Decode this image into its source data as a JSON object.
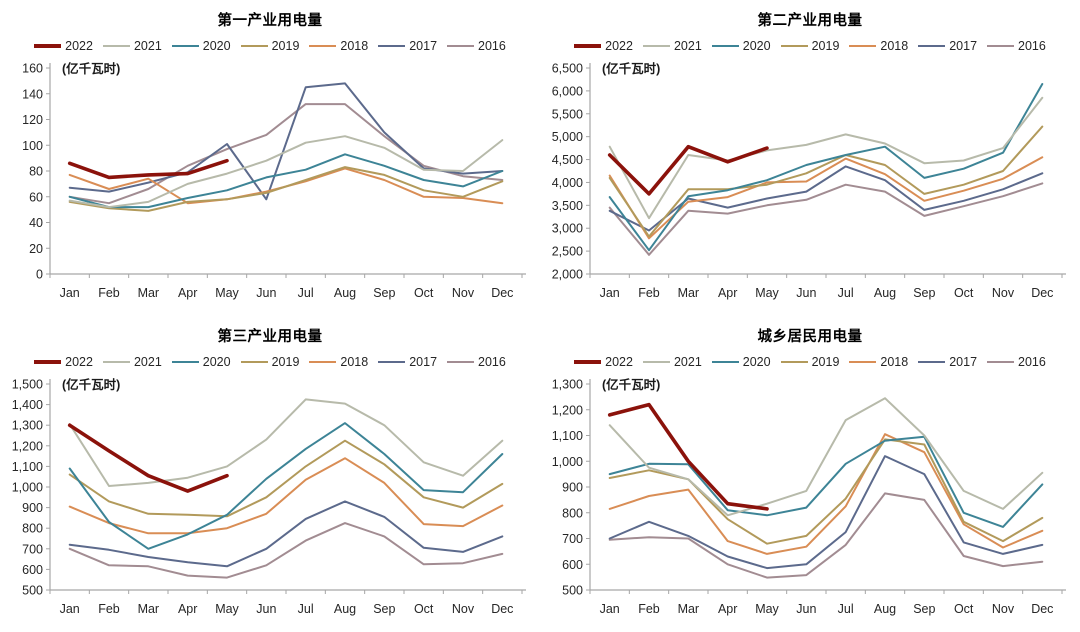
{
  "x_labels": [
    "Jan",
    "Feb",
    "Mar",
    "Apr",
    "May",
    "Jun",
    "Jul",
    "Aug",
    "Sep",
    "Oct",
    "Nov",
    "Dec"
  ],
  "colors": {
    "axis": "#a6a6a6",
    "label": "#262626",
    "y2022": "#8B120B",
    "y2021": "#B7BAAA",
    "y2020": "#3D8496",
    "y2019": "#B29A5B",
    "y2018": "#D98D55",
    "y2017": "#5C6A8C",
    "y2016": "#A28C92"
  },
  "chart_data": [
    {
      "type": "line",
      "title": "第一产业用电量",
      "unit_label": "(亿千瓦时)",
      "categories": [
        "Jan",
        "Feb",
        "Mar",
        "Apr",
        "May",
        "Jun",
        "Jul",
        "Aug",
        "Sep",
        "Oct",
        "Nov",
        "Dec"
      ],
      "ylim": [
        0,
        160
      ],
      "ystep": 20,
      "grid": false,
      "legend_position": "top",
      "series": [
        {
          "name": "2022",
          "color": "#8B120B",
          "thick": true,
          "values": [
            86,
            75,
            77,
            78,
            88
          ]
        },
        {
          "name": "2021",
          "color": "#B7BAAA",
          "thick": false,
          "values": [
            57,
            52,
            56,
            70,
            78,
            88,
            102,
            107,
            98,
            81,
            80,
            104
          ]
        },
        {
          "name": "2020",
          "color": "#3D8496",
          "thick": false,
          "values": [
            60,
            52,
            52,
            59,
            65,
            75,
            81,
            93,
            84,
            73,
            68,
            80
          ]
        },
        {
          "name": "2019",
          "color": "#B29A5B",
          "thick": false,
          "values": [
            56,
            51,
            49,
            56,
            58,
            63,
            73,
            83,
            77,
            65,
            60,
            72
          ]
        },
        {
          "name": "2018",
          "color": "#D98D55",
          "thick": false,
          "values": [
            77,
            66,
            74,
            55,
            58,
            64,
            72,
            82,
            73,
            60,
            59,
            55
          ]
        },
        {
          "name": "2017",
          "color": "#5C6A8C",
          "thick": false,
          "values": [
            67,
            64,
            71,
            79,
            101,
            58,
            145,
            148,
            110,
            82,
            78,
            80
          ]
        },
        {
          "name": "2016",
          "color": "#A28C92",
          "thick": false,
          "values": [
            60,
            55,
            66,
            84,
            97,
            108,
            132,
            132,
            107,
            84,
            76,
            73
          ]
        }
      ]
    },
    {
      "type": "line",
      "title": "第二产业用电量",
      "unit_label": "(亿千瓦时)",
      "categories": [
        "Jan",
        "Feb",
        "Mar",
        "Apr",
        "May",
        "Jun",
        "Jul",
        "Aug",
        "Sep",
        "Oct",
        "Nov",
        "Dec"
      ],
      "ylim": [
        2000,
        6500
      ],
      "ystep": 500,
      "grid": false,
      "legend_position": "top",
      "series": [
        {
          "name": "2022",
          "color": "#8B120B",
          "thick": true,
          "values": [
            4600,
            3750,
            4780,
            4450,
            4750
          ]
        },
        {
          "name": "2021",
          "color": "#B7BAAA",
          "thick": false,
          "values": [
            4780,
            3220,
            4600,
            4480,
            4700,
            4820,
            5050,
            4850,
            4420,
            4480,
            4750,
            5850
          ]
        },
        {
          "name": "2020",
          "color": "#3D8496",
          "thick": false,
          "values": [
            3680,
            2520,
            3700,
            3830,
            4050,
            4380,
            4600,
            4780,
            4100,
            4300,
            4650,
            6150
          ]
        },
        {
          "name": "2019",
          "color": "#B29A5B",
          "thick": false,
          "values": [
            4100,
            2820,
            3850,
            3850,
            3950,
            4200,
            4600,
            4380,
            3750,
            3950,
            4250,
            5220
          ]
        },
        {
          "name": "2018",
          "color": "#D98D55",
          "thick": false,
          "values": [
            4150,
            2780,
            3580,
            3680,
            4000,
            4020,
            4520,
            4180,
            3600,
            3820,
            4080,
            4550
          ]
        },
        {
          "name": "2017",
          "color": "#5C6A8C",
          "thick": false,
          "values": [
            3380,
            2950,
            3650,
            3450,
            3650,
            3800,
            4350,
            4050,
            3400,
            3600,
            3850,
            4200
          ]
        },
        {
          "name": "2016",
          "color": "#A28C92",
          "thick": false,
          "values": [
            3450,
            2420,
            3380,
            3320,
            3500,
            3620,
            3950,
            3800,
            3270,
            3480,
            3700,
            3980
          ]
        }
      ]
    },
    {
      "type": "line",
      "title": "第三产业用电量",
      "unit_label": "(亿千瓦时)",
      "categories": [
        "Jan",
        "Feb",
        "Mar",
        "Apr",
        "May",
        "Jun",
        "Jul",
        "Aug",
        "Sep",
        "Oct",
        "Nov",
        "Dec"
      ],
      "ylim": [
        500,
        1500
      ],
      "ystep": 100,
      "grid": false,
      "legend_position": "top",
      "series": [
        {
          "name": "2022",
          "color": "#8B120B",
          "thick": true,
          "values": [
            1300,
            1175,
            1055,
            980,
            1055
          ]
        },
        {
          "name": "2021",
          "color": "#B7BAAA",
          "thick": false,
          "values": [
            1305,
            1005,
            1020,
            1045,
            1100,
            1230,
            1425,
            1405,
            1300,
            1120,
            1055,
            1225
          ]
        },
        {
          "name": "2020",
          "color": "#3D8496",
          "thick": false,
          "values": [
            1090,
            830,
            700,
            770,
            865,
            1040,
            1185,
            1310,
            1160,
            985,
            975,
            1160
          ]
        },
        {
          "name": "2019",
          "color": "#B29A5B",
          "thick": false,
          "values": [
            1060,
            930,
            870,
            865,
            858,
            950,
            1100,
            1225,
            1110,
            950,
            900,
            1015
          ]
        },
        {
          "name": "2018",
          "color": "#D98D55",
          "thick": false,
          "values": [
            905,
            825,
            775,
            775,
            800,
            870,
            1035,
            1140,
            1020,
            820,
            810,
            910
          ]
        },
        {
          "name": "2017",
          "color": "#5C6A8C",
          "thick": false,
          "values": [
            720,
            695,
            660,
            635,
            615,
            700,
            845,
            930,
            855,
            705,
            685,
            760
          ]
        },
        {
          "name": "2016",
          "color": "#A28C92",
          "thick": false,
          "values": [
            700,
            620,
            615,
            570,
            560,
            620,
            740,
            825,
            760,
            625,
            630,
            675
          ]
        }
      ]
    },
    {
      "type": "line",
      "title": "城乡居民用电量",
      "unit_label": "(亿千瓦时)",
      "categories": [
        "Jan",
        "Feb",
        "Mar",
        "Apr",
        "May",
        "Jun",
        "Jul",
        "Aug",
        "Sep",
        "Oct",
        "Nov",
        "Dec"
      ],
      "ylim": [
        500,
        1300
      ],
      "ystep": 100,
      "grid": false,
      "legend_position": "top",
      "series": [
        {
          "name": "2022",
          "color": "#8B120B",
          "thick": true,
          "values": [
            1180,
            1220,
            1000,
            835,
            815
          ]
        },
        {
          "name": "2021",
          "color": "#B7BAAA",
          "thick": false,
          "values": [
            1140,
            975,
            930,
            790,
            835,
            885,
            1160,
            1245,
            1100,
            885,
            815,
            955
          ]
        },
        {
          "name": "2020",
          "color": "#3D8496",
          "thick": false,
          "values": [
            950,
            990,
            988,
            810,
            790,
            820,
            990,
            1080,
            1095,
            800,
            745,
            910
          ]
        },
        {
          "name": "2019",
          "color": "#B29A5B",
          "thick": false,
          "values": [
            935,
            965,
            930,
            775,
            680,
            710,
            855,
            1085,
            1065,
            765,
            690,
            780
          ]
        },
        {
          "name": "2018",
          "color": "#D98D55",
          "thick": false,
          "values": [
            815,
            865,
            890,
            690,
            640,
            668,
            825,
            1105,
            1035,
            755,
            665,
            730
          ]
        },
        {
          "name": "2017",
          "color": "#5C6A8C",
          "thick": false,
          "values": [
            700,
            765,
            710,
            630,
            585,
            600,
            725,
            1020,
            950,
            685,
            640,
            675
          ]
        },
        {
          "name": "2016",
          "color": "#A28C92",
          "thick": false,
          "values": [
            695,
            705,
            700,
            600,
            548,
            558,
            675,
            875,
            850,
            632,
            593,
            610
          ]
        }
      ]
    }
  ]
}
